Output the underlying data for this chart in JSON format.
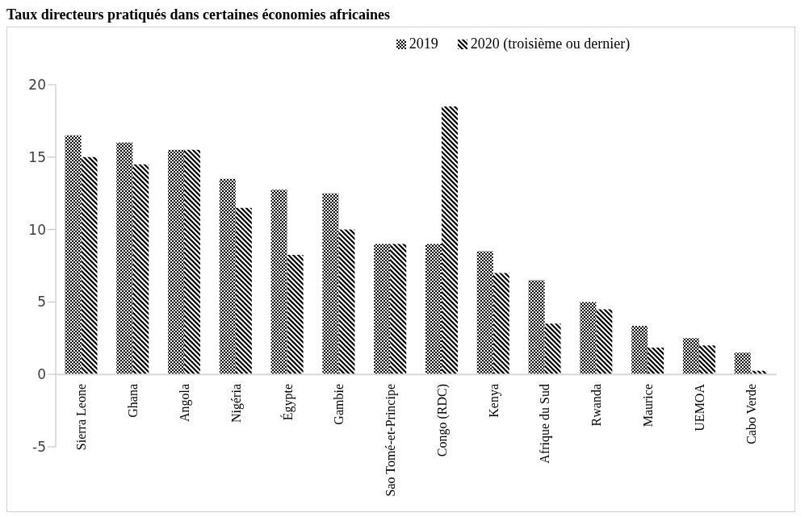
{
  "chart_data": {
    "type": "bar",
    "title": "Taux directeurs pratiqués dans certaines économies africaines",
    "categories": [
      "Sierra Leone",
      "Ghana",
      "Angola",
      "Nigéria",
      "Égypte",
      "Gambie",
      "Sao Tomé-et-Principe",
      "Congo (RDC)",
      "Kenya",
      "Afrique du Sud",
      "Rwanda",
      "Maurice",
      "UEMOA",
      "Cabo Verde"
    ],
    "series": [
      {
        "name": "2019",
        "color": "#000000",
        "values": [
          16.5,
          16,
          15.5,
          13.5,
          12.75,
          12.5,
          9,
          9,
          8.5,
          6.5,
          5,
          3.35,
          2.5,
          1.5
        ]
      },
      {
        "name": "2020 (troisième ou dernier)",
        "color": "#000000",
        "values": [
          15,
          14.5,
          15.5,
          11.5,
          8.25,
          10,
          9,
          18.5,
          7,
          3.5,
          4.5,
          1.85,
          2,
          0.25
        ]
      }
    ],
    "ylim": [
      -5,
      20
    ],
    "yticks": [
      -5,
      0,
      5,
      10,
      15,
      20
    ],
    "grid": false,
    "legend": "top"
  }
}
